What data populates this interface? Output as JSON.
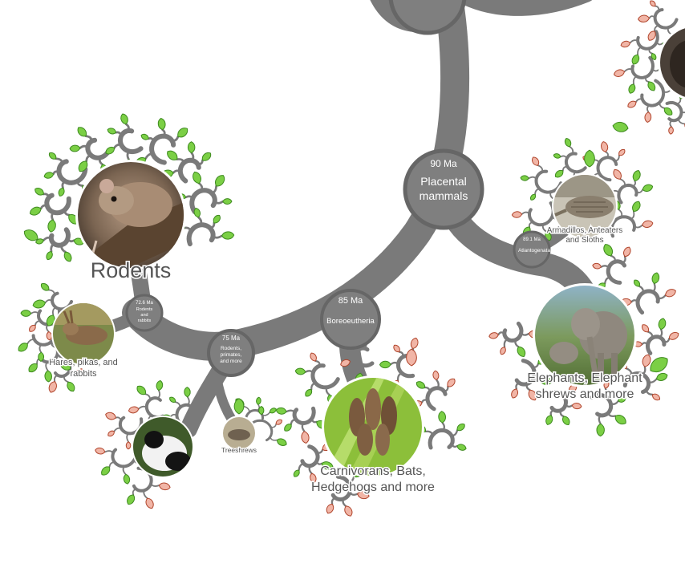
{
  "colors": {
    "branch": "#7a7a7a",
    "node_fill": "#7f7f7f",
    "node_ring": "#666666",
    "leaf_green": "#7bcf45",
    "leaf_green_edge": "#3e8a1f",
    "leaf_red": "#f1b5a6",
    "leaf_red_edge": "#b0452c",
    "label_text": "#ffffff",
    "clade_text": "#555555"
  },
  "nodes": {
    "placental": {
      "age": "90 Ma",
      "name_line1": "Placental",
      "name_line2": "mammals"
    },
    "boreo": {
      "age": "85 Ma",
      "name": "Boreoeutheria"
    },
    "primates_node": {
      "age": "75 Ma",
      "line1": "Rodents,",
      "line2": "primates,",
      "line3": "and more"
    },
    "rodents_rabbits": {
      "age": "72.6 Ma",
      "line1": "Rodents",
      "line2": "and",
      "line3": "rabbits"
    },
    "atlanto": {
      "age": "89.1 Ma",
      "name": "Atlantogenata"
    }
  },
  "clades": {
    "rodents": "Rodents",
    "hares_line1": "Hares, pikas, and",
    "hares_line2": "rabbits",
    "treeshrews": "Treeshrews",
    "carnivorans_line1": "Carnivorans, Bats,",
    "carnivorans_line2": "Hedgehogs and more",
    "armadillos_line1": "Armadillos, Anteaters",
    "armadillos_line2": "and Sloths",
    "elephants_line1": "Elephants, Elephant",
    "elephants_line2": "shrews and more"
  },
  "icons": [
    "mouse-photo",
    "hare-photo",
    "lemur-photo",
    "treeshrew-photo",
    "bats-photo",
    "armadillo-photo",
    "elephant-photo",
    "leaf-icon"
  ]
}
